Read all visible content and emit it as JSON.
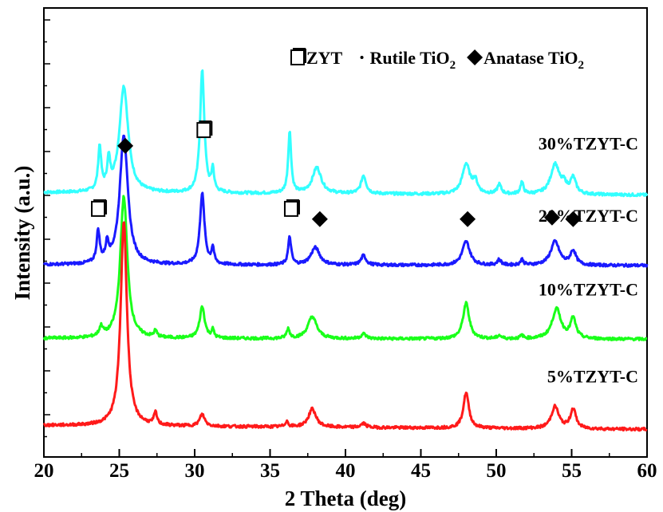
{
  "chart_data": {
    "type": "line",
    "xlabel": "2 Theta (deg)",
    "ylabel": "Intensity (a.u.)",
    "xlim": [
      20,
      60
    ],
    "x_ticks": [
      20,
      25,
      30,
      35,
      40,
      45,
      50,
      55,
      60
    ],
    "y_ticks_labeled": false,
    "grid": false,
    "legend": {
      "placement": "top-right",
      "entries": [
        {
          "marker": "open-square",
          "text": "ZYT"
        },
        {
          "marker": "dot",
          "text": "Rutile TiO",
          "sub": "2"
        },
        {
          "marker": "filled-diamond",
          "text": "Anatase TiO",
          "sub": "2"
        }
      ]
    },
    "series": [
      {
        "name": "30%TZYT-C",
        "color": "#33ffff",
        "baseline": 0.955,
        "end": 0.925,
        "peaks": [
          [
            23.7,
            0.55,
            0.12
          ],
          [
            24.3,
            0.35,
            0.12
          ],
          [
            25.3,
            1.35,
            0.35
          ],
          [
            30.5,
            1.55,
            0.17
          ],
          [
            31.2,
            0.28,
            0.1
          ],
          [
            36.3,
            0.78,
            0.12
          ],
          [
            38.1,
            0.33,
            0.35
          ],
          [
            41.2,
            0.23,
            0.2
          ],
          [
            48.0,
            0.38,
            0.3
          ],
          [
            48.6,
            0.15,
            0.2
          ],
          [
            50.2,
            0.12,
            0.15
          ],
          [
            51.7,
            0.15,
            0.12
          ],
          [
            53.9,
            0.38,
            0.35
          ],
          [
            54.5,
            0.1,
            0.2
          ],
          [
            55.1,
            0.2,
            0.22
          ]
        ]
      },
      {
        "name": "20%TZYT-C",
        "color": "#1a1aff",
        "baseline": 0.04,
        "end": 0.03,
        "peaks": [
          [
            23.6,
            0.4,
            0.12
          ],
          [
            24.2,
            0.22,
            0.12
          ],
          [
            25.3,
            1.65,
            0.32
          ],
          [
            30.5,
            0.9,
            0.18
          ],
          [
            31.2,
            0.2,
            0.1
          ],
          [
            36.3,
            0.35,
            0.12
          ],
          [
            38.0,
            0.22,
            0.35
          ],
          [
            41.2,
            0.12,
            0.2
          ],
          [
            48.0,
            0.3,
            0.3
          ],
          [
            50.2,
            0.07,
            0.15
          ],
          [
            51.7,
            0.07,
            0.12
          ],
          [
            53.9,
            0.3,
            0.35
          ],
          [
            55.1,
            0.18,
            0.22
          ]
        ]
      },
      {
        "name": "10%TZYT-C",
        "color": "#1aff1a",
        "baseline": -0.895,
        "end": -0.905,
        "peaks": [
          [
            23.8,
            0.12,
            0.15
          ],
          [
            25.3,
            1.8,
            0.28
          ],
          [
            27.4,
            0.08,
            0.12
          ],
          [
            30.5,
            0.4,
            0.2
          ],
          [
            31.2,
            0.1,
            0.1
          ],
          [
            36.2,
            0.12,
            0.12
          ],
          [
            37.8,
            0.28,
            0.35
          ],
          [
            41.2,
            0.06,
            0.2
          ],
          [
            48.0,
            0.45,
            0.25
          ],
          [
            50.2,
            0.04,
            0.15
          ],
          [
            51.7,
            0.04,
            0.12
          ],
          [
            54.0,
            0.38,
            0.35
          ],
          [
            55.1,
            0.25,
            0.22
          ]
        ]
      },
      {
        "name": "5%TZYT-C",
        "color": "#ff1a1a",
        "baseline": -2.0,
        "end": -2.05,
        "peaks": [
          [
            25.3,
            2.6,
            0.25
          ],
          [
            27.4,
            0.15,
            0.12
          ],
          [
            30.5,
            0.15,
            0.2
          ],
          [
            36.1,
            0.07,
            0.12
          ],
          [
            37.8,
            0.23,
            0.3
          ],
          [
            41.2,
            0.05,
            0.2
          ],
          [
            48.0,
            0.45,
            0.22
          ],
          [
            53.9,
            0.28,
            0.3
          ],
          [
            55.1,
            0.25,
            0.22
          ]
        ]
      }
    ],
    "markers": [
      {
        "type": "open-square",
        "x": 23.6,
        "y": 0.75
      },
      {
        "type": "filled-diamond",
        "x": 25.4,
        "y": 1.55
      },
      {
        "type": "open-square",
        "x": 30.6,
        "y": 1.75
      },
      {
        "type": "open-square",
        "x": 36.4,
        "y": 0.75
      },
      {
        "type": "filled-diamond",
        "x": 38.3,
        "y": 0.62
      },
      {
        "type": "filled-diamond",
        "x": 48.1,
        "y": 0.62
      },
      {
        "type": "filled-diamond",
        "x": 53.7,
        "y": 0.64
      },
      {
        "type": "filled-diamond",
        "x": 55.1,
        "y": 0.62
      }
    ],
    "ylim": [
      -2.4,
      3.3
    ]
  }
}
